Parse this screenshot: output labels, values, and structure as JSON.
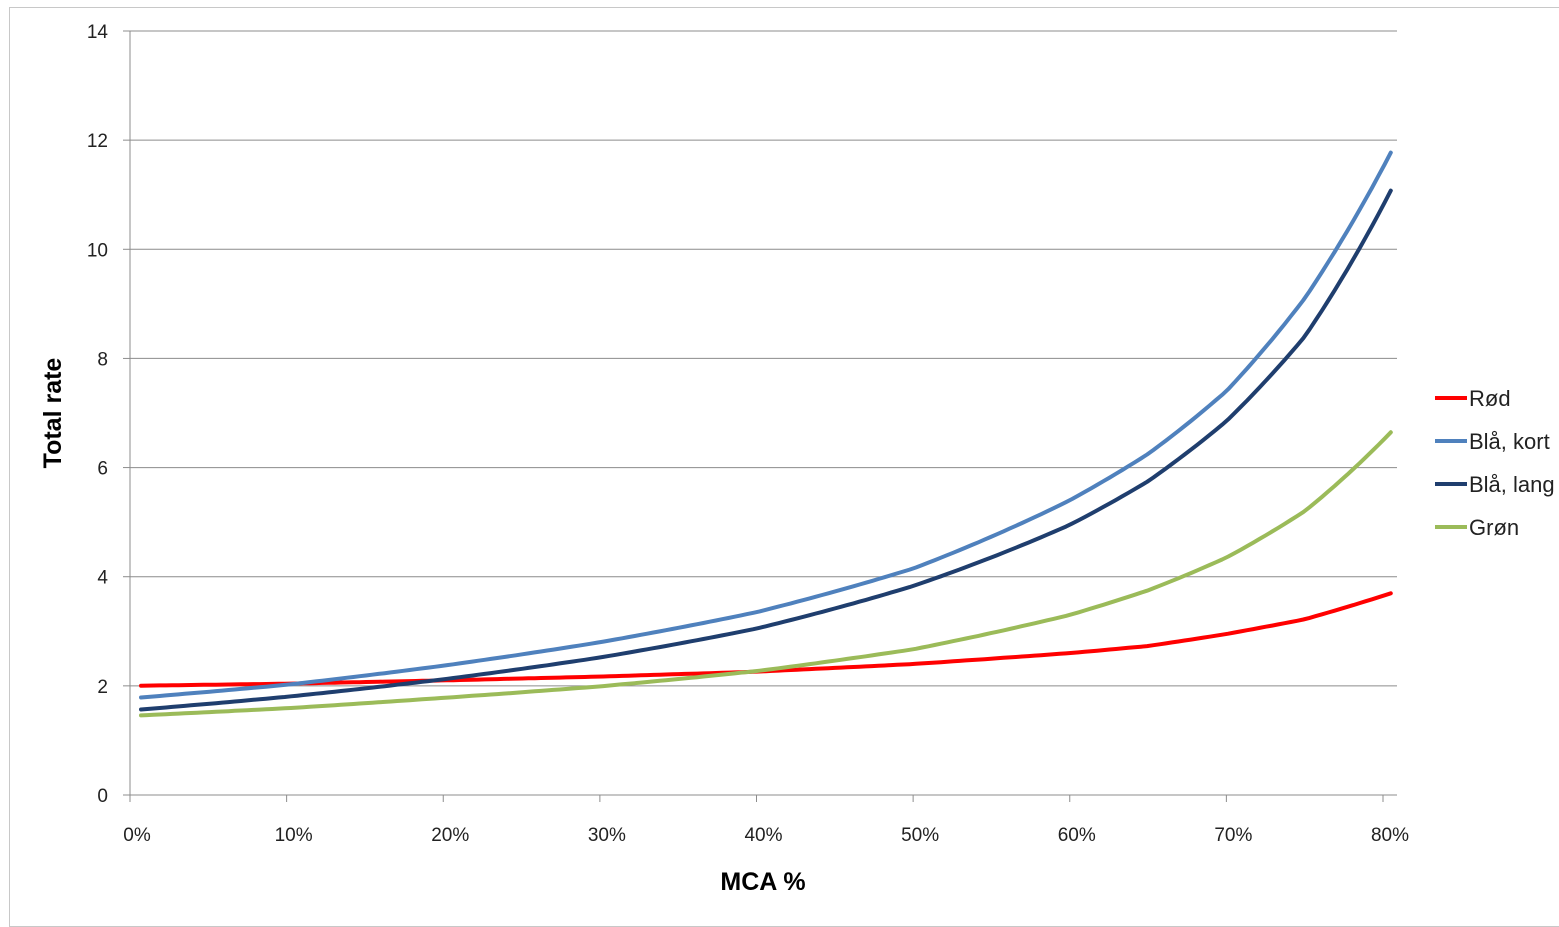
{
  "chart_data": {
    "type": "line",
    "title": "",
    "xlabel": "MCA %",
    "ylabel": "Total rate",
    "xlim": [
      0,
      80
    ],
    "ylim": [
      0,
      14
    ],
    "x_ticks": [
      "0%",
      "10%",
      "20%",
      "30%",
      "40%",
      "50%",
      "60%",
      "70%",
      "80%"
    ],
    "y_ticks": [
      "0",
      "2",
      "4",
      "6",
      "8",
      "10",
      "12",
      "14"
    ],
    "grid": "horizontal",
    "legend_position": "right",
    "x": [
      0,
      10,
      20,
      30,
      40,
      50,
      60,
      65,
      70,
      75,
      80
    ],
    "series": [
      {
        "name": "Rød",
        "color": "#ff0000",
        "values": [
          2.0,
          2.04,
          2.1,
          2.17,
          2.26,
          2.4,
          2.6,
          2.73,
          2.95,
          3.22,
          3.65
        ]
      },
      {
        "name": "Blå, kort",
        "color": "#4f81bd",
        "values": [
          1.77,
          2.02,
          2.37,
          2.8,
          3.35,
          4.15,
          5.4,
          6.25,
          7.4,
          9.1,
          11.5
        ]
      },
      {
        "name": "Blå, lang",
        "color": "#1f3e6e",
        "values": [
          1.55,
          1.8,
          2.12,
          2.52,
          3.05,
          3.83,
          4.95,
          5.75,
          6.85,
          8.4,
          10.8
        ]
      },
      {
        "name": "Grøn",
        "color": "#9bbb59",
        "values": [
          1.45,
          1.59,
          1.78,
          1.99,
          2.27,
          2.67,
          3.3,
          3.75,
          4.35,
          5.2,
          6.5
        ]
      }
    ]
  }
}
